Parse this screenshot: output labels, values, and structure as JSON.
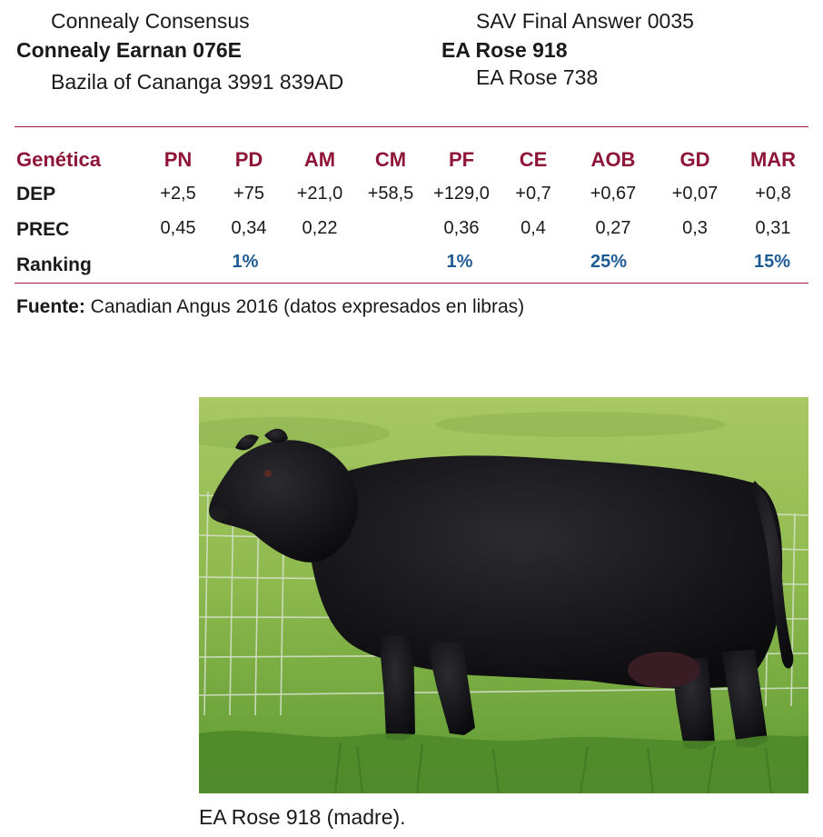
{
  "pedigree": {
    "sire_sire": "Connealy Consensus",
    "sire": "Connealy Earnan 076E",
    "sire_dam": "Bazila of Cananga 3991 839AD",
    "dam_sire": "SAV Final Answer 0035",
    "dam": "EA Rose 918",
    "dam_dam": "EA Rose 738"
  },
  "table": {
    "corner": "Genética",
    "columns": [
      "PN",
      "PD",
      "AM",
      "CM",
      "PF",
      "CE",
      "AOB",
      "GD",
      "MAR"
    ],
    "rows": [
      {
        "label": "DEP",
        "cells": [
          "+2,5",
          "+75",
          "+21,0",
          "+58,5",
          "+129,0",
          "+0,7",
          "+0,67",
          "+0,07",
          "+0,8"
        ]
      },
      {
        "label": "PREC",
        "cells": [
          "0,45",
          "0,34",
          "0,22",
          "",
          "0,36",
          "0,4",
          "0,27",
          "0,3",
          "0,31"
        ]
      },
      {
        "label": "Ranking",
        "cells": [
          "",
          "1%",
          "",
          "",
          "1%",
          "",
          "25%",
          "",
          "15%"
        ]
      }
    ]
  },
  "source": {
    "label": "Fuente:",
    "text": "Canadian Angus 2016 (datos expresados en libras)"
  },
  "photo": {
    "caption": "EA Rose 918 (madre)."
  },
  "colors": {
    "accent": "#8e1538",
    "ranking": "#1f5b94"
  }
}
